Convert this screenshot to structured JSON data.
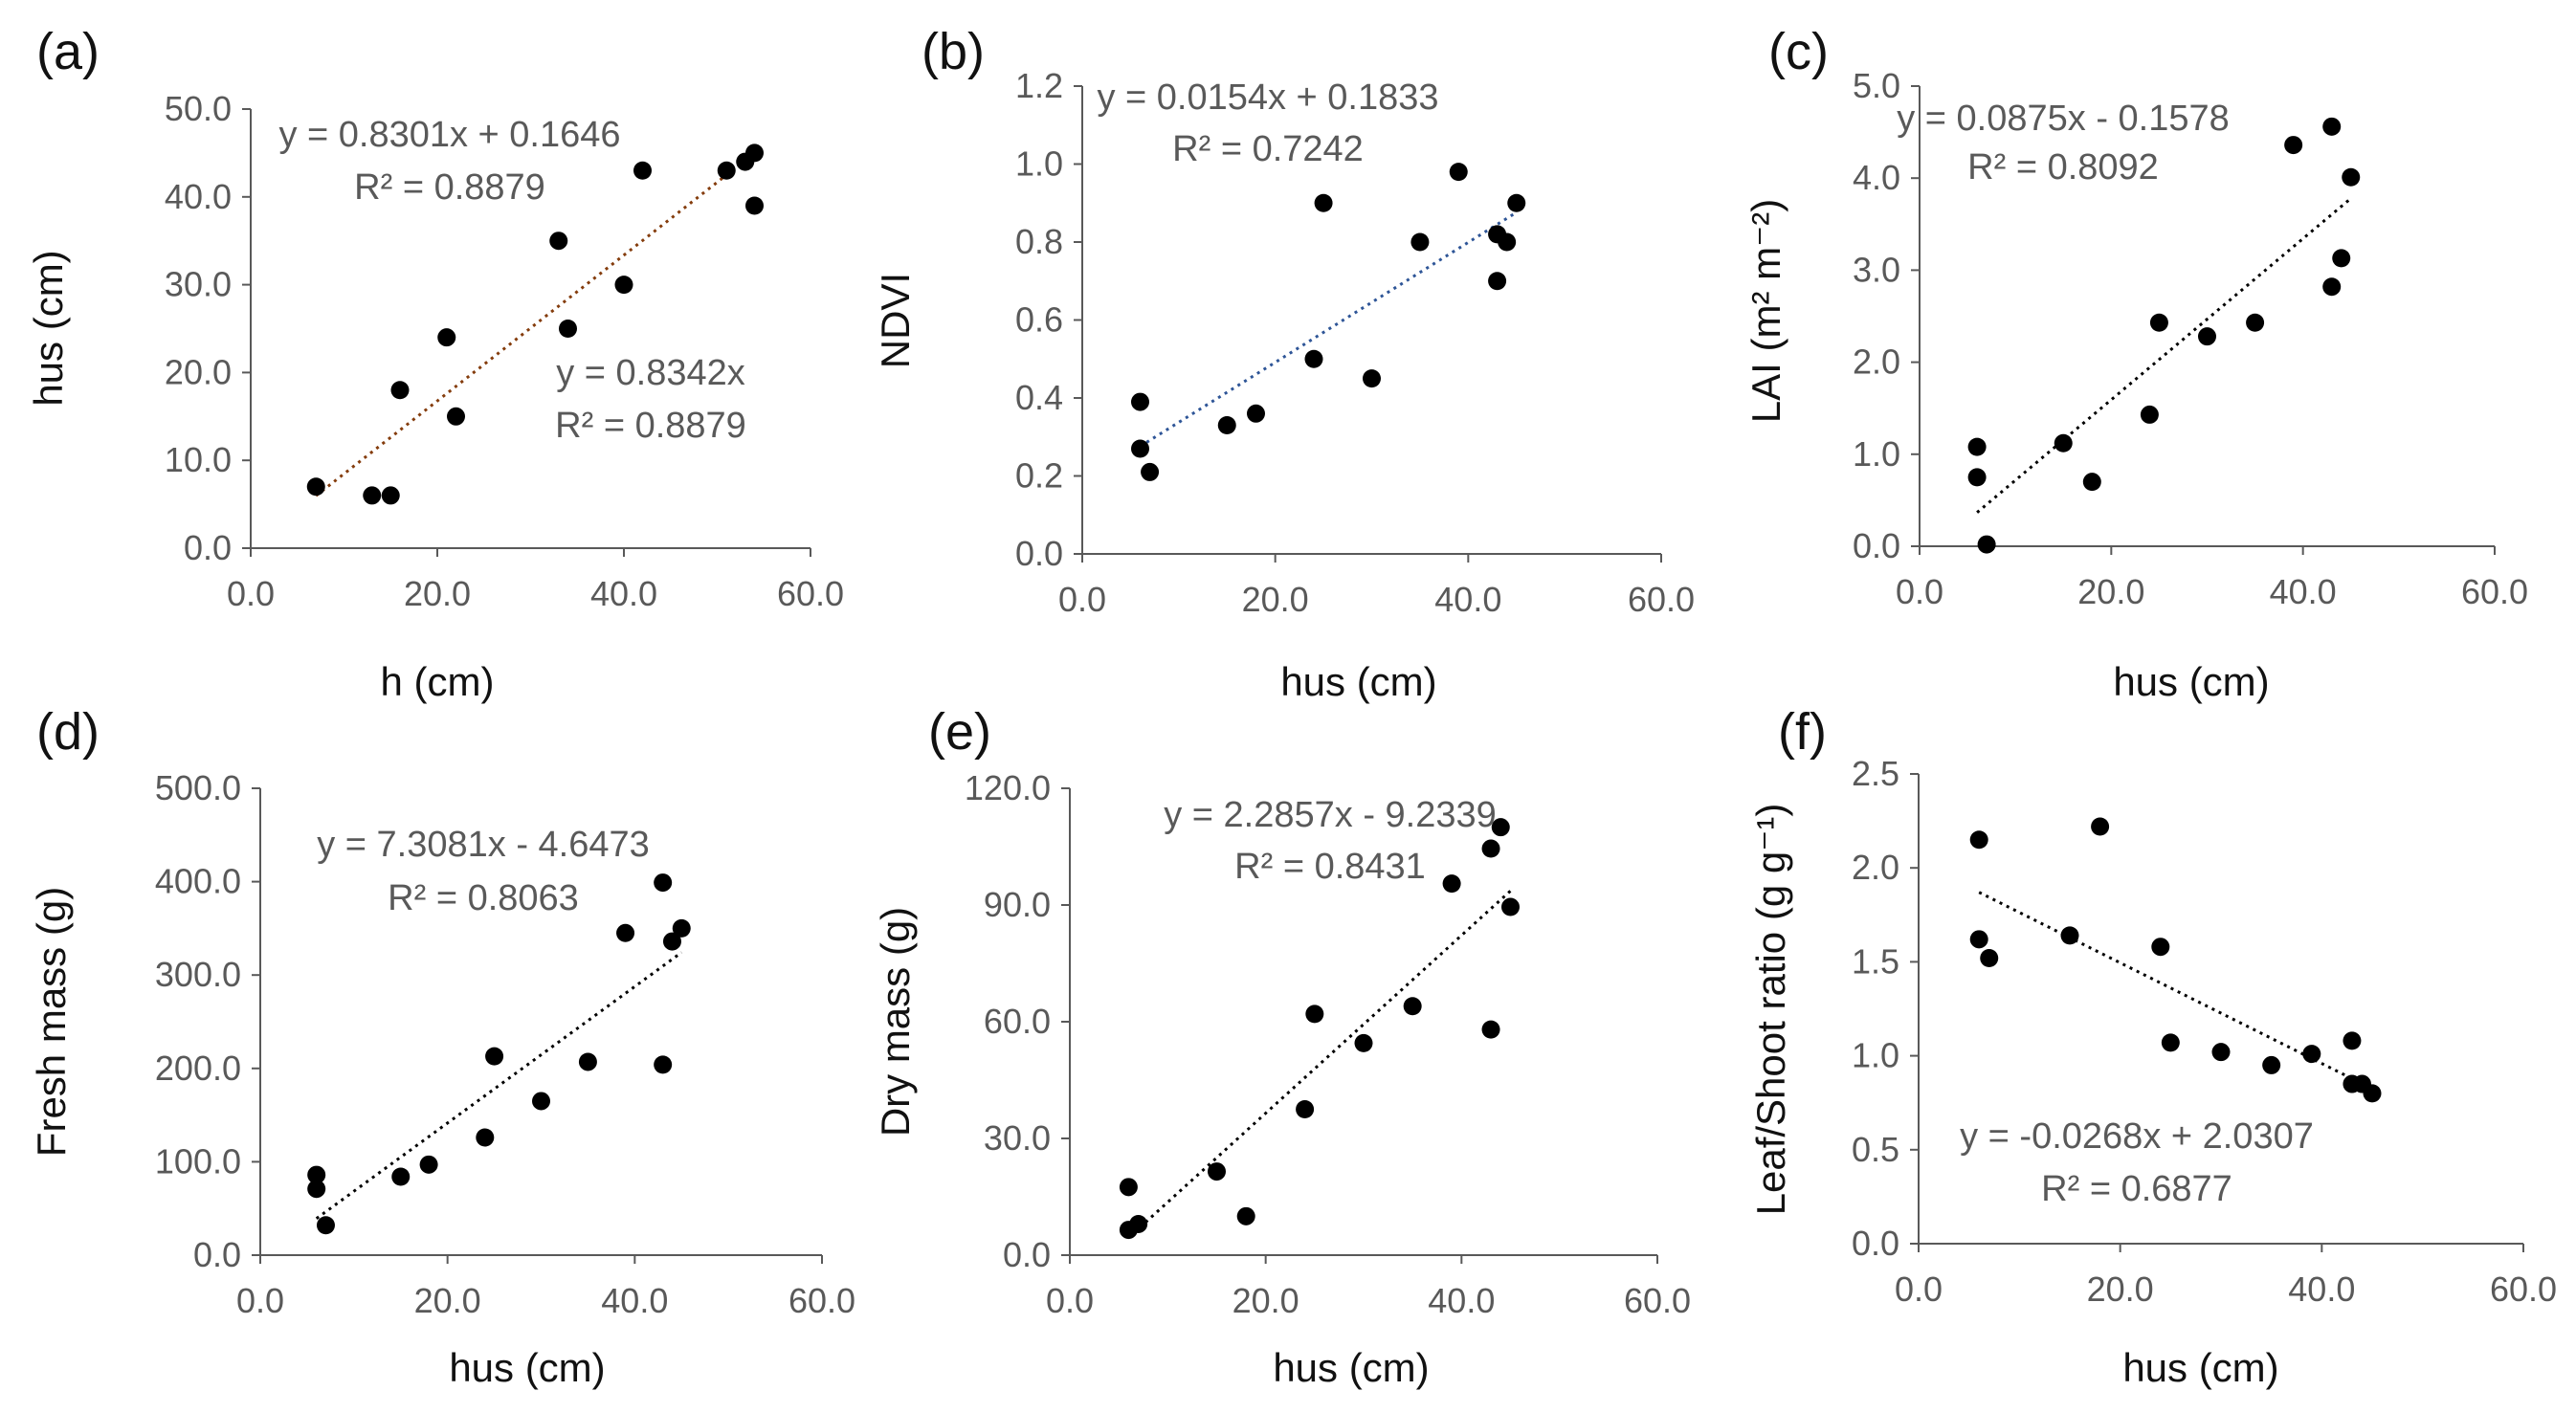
{
  "figure": {
    "background": "#ffffff",
    "point_color": "#000000",
    "axis_color": "#595959"
  },
  "chart_data": [
    {
      "type": "scatter",
      "panel_label": "(a)",
      "xlabel": "h  (cm)",
      "ylabel": "hus (cm)",
      "xlim": [
        0,
        60
      ],
      "ylim": [
        0,
        50
      ],
      "xticks": [
        0,
        20,
        40,
        60
      ],
      "xtick_labels": [
        "0.0",
        "20.0",
        "40.0",
        "60.0"
      ],
      "yticks": [
        0,
        10,
        20,
        30,
        40,
        50
      ],
      "ytick_labels": [
        "0.0",
        "10.0",
        "20.0",
        "30.0",
        "40.0",
        "50.0"
      ],
      "points": [
        [
          7,
          7
        ],
        [
          13,
          6
        ],
        [
          15,
          6
        ],
        [
          16,
          18
        ],
        [
          21,
          24
        ],
        [
          22,
          15
        ],
        [
          33,
          35
        ],
        [
          34,
          25
        ],
        [
          40,
          30
        ],
        [
          42,
          43
        ],
        [
          51,
          43
        ],
        [
          53,
          44
        ],
        [
          54,
          45
        ],
        [
          54,
          39
        ]
      ],
      "trendline": {
        "x": [
          7,
          54
        ],
        "y": [
          5.975,
          44.989
        ],
        "color": "#843c0c"
      },
      "annotations": [
        "y = 0.8301x + 0.1646",
        "R² = 0.8879",
        "y = 0.8342x",
        "R² = 0.8879"
      ]
    },
    {
      "type": "scatter",
      "panel_label": "(b)",
      "xlabel": "hus (cm)",
      "ylabel": "NDVI",
      "xlim": [
        0,
        60
      ],
      "ylim": [
        0,
        1.2
      ],
      "xticks": [
        0,
        20,
        40,
        60
      ],
      "xtick_labels": [
        "0.0",
        "20.0",
        "40.0",
        "60.0"
      ],
      "yticks": [
        0,
        0.2,
        0.4,
        0.6,
        0.8,
        1.0,
        1.2
      ],
      "ytick_labels": [
        "0.0",
        "0.2",
        "0.4",
        "0.6",
        "0.8",
        "1.0",
        "1.2"
      ],
      "points": [
        [
          6,
          0.39
        ],
        [
          6,
          0.27
        ],
        [
          7,
          0.21
        ],
        [
          15,
          0.33
        ],
        [
          18,
          0.36
        ],
        [
          24,
          0.5
        ],
        [
          25,
          0.9
        ],
        [
          30,
          0.45
        ],
        [
          35,
          0.8
        ],
        [
          39,
          0.98
        ],
        [
          43,
          0.82
        ],
        [
          43,
          0.7
        ],
        [
          44,
          0.8
        ],
        [
          45,
          0.9
        ]
      ],
      "trendline": {
        "x": [
          6,
          45
        ],
        "y": [
          0.276,
          0.876
        ],
        "color": "#2e5597"
      },
      "annotations": [
        "y = 0.0154x + 0.1833",
        "R² = 0.7242"
      ]
    },
    {
      "type": "scatter",
      "panel_label": "(c)",
      "xlabel": "hus (cm)",
      "ylabel": "LAI  (m² m⁻²)",
      "xlim": [
        0,
        60
      ],
      "ylim": [
        0,
        5
      ],
      "xticks": [
        0,
        20,
        40,
        60
      ],
      "xtick_labels": [
        "0.0",
        "20.0",
        "40.0",
        "60.0"
      ],
      "yticks": [
        0,
        1,
        2,
        3,
        4,
        5
      ],
      "ytick_labels": [
        "0.0",
        "1.0",
        "2.0",
        "3.0",
        "4.0",
        "5.0"
      ],
      "points": [
        [
          6,
          1.08
        ],
        [
          6,
          0.75
        ],
        [
          7,
          0.02
        ],
        [
          15,
          1.12
        ],
        [
          18,
          0.7
        ],
        [
          24,
          1.43
        ],
        [
          25,
          2.43
        ],
        [
          30,
          2.28
        ],
        [
          35,
          2.43
        ],
        [
          39,
          4.36
        ],
        [
          43,
          4.56
        ],
        [
          43,
          2.82
        ],
        [
          44,
          3.13
        ],
        [
          45,
          4.01
        ]
      ],
      "trendline": {
        "x": [
          6,
          45
        ],
        "y": [
          0.367,
          3.78
        ],
        "color": "#000000"
      },
      "annotations": [
        "y = 0.0875x - 0.1578",
        "R² = 0.8092"
      ]
    },
    {
      "type": "scatter",
      "panel_label": "(d)",
      "xlabel": "hus (cm)",
      "ylabel": "Fresh mass (g)",
      "xlim": [
        0,
        60
      ],
      "ylim": [
        0,
        500
      ],
      "xticks": [
        0,
        20,
        40,
        60
      ],
      "xtick_labels": [
        "0.0",
        "20.0",
        "40.0",
        "60.0"
      ],
      "yticks": [
        0,
        100,
        200,
        300,
        400,
        500
      ],
      "ytick_labels": [
        "0.0",
        "100.0",
        "200.0",
        "300.0",
        "400.0",
        "500.0"
      ],
      "points": [
        [
          6,
          86
        ],
        [
          6,
          71
        ],
        [
          7,
          32
        ],
        [
          15,
          84
        ],
        [
          18,
          97
        ],
        [
          24,
          126
        ],
        [
          25,
          213
        ],
        [
          30,
          165
        ],
        [
          35,
          207
        ],
        [
          39,
          345
        ],
        [
          43,
          399
        ],
        [
          43,
          204
        ],
        [
          44,
          336
        ],
        [
          45,
          350
        ]
      ],
      "trendline": {
        "x": [
          6,
          45
        ],
        "y": [
          39.2,
          324.2
        ],
        "color": "#000000"
      },
      "annotations": [
        "y = 7.3081x - 4.6473",
        "R² = 0.8063"
      ]
    },
    {
      "type": "scatter",
      "panel_label": "(e)",
      "xlabel": "hus (cm)",
      "ylabel": "Dry mass (g)",
      "xlim": [
        0,
        60
      ],
      "ylim": [
        0,
        120
      ],
      "xticks": [
        0,
        20,
        40,
        60
      ],
      "xtick_labels": [
        "0.0",
        "20.0",
        "40.0",
        "60.0"
      ],
      "yticks": [
        0,
        30,
        60,
        90,
        120
      ],
      "ytick_labels": [
        "0.0",
        "30.0",
        "60.0",
        "90.0",
        "120.0"
      ],
      "points": [
        [
          6,
          17.5
        ],
        [
          6,
          6.5
        ],
        [
          7,
          8
        ],
        [
          15,
          21.5
        ],
        [
          18,
          10
        ],
        [
          24,
          37.5
        ],
        [
          25,
          62
        ],
        [
          30,
          54.5
        ],
        [
          35,
          64
        ],
        [
          39,
          95.5
        ],
        [
          43,
          104.5
        ],
        [
          43,
          58
        ],
        [
          44,
          110
        ],
        [
          45,
          89.5
        ]
      ],
      "trendline": {
        "x": [
          6,
          45
        ],
        "y": [
          4.48,
          93.62
        ],
        "color": "#000000"
      },
      "annotations": [
        "y = 2.2857x - 9.2339",
        "R² = 0.8431"
      ]
    },
    {
      "type": "scatter",
      "panel_label": "(f)",
      "xlabel": "hus (cm)",
      "ylabel": "Leaf/Shoot ratio (g g⁻¹)",
      "xlim": [
        0,
        60
      ],
      "ylim": [
        0,
        2.5
      ],
      "xticks": [
        0,
        20,
        40,
        60
      ],
      "xtick_labels": [
        "0.0",
        "20.0",
        "40.0",
        "60.0"
      ],
      "yticks": [
        0,
        0.5,
        1.0,
        1.5,
        2.0,
        2.5
      ],
      "ytick_labels": [
        "0.0",
        "0.5",
        "1.0",
        "1.5",
        "2.0",
        "2.5"
      ],
      "points": [
        [
          6,
          2.15
        ],
        [
          6,
          1.62
        ],
        [
          7,
          1.52
        ],
        [
          15,
          1.64
        ],
        [
          18,
          2.22
        ],
        [
          24,
          1.58
        ],
        [
          25,
          1.07
        ],
        [
          30,
          1.02
        ],
        [
          35,
          0.95
        ],
        [
          39,
          1.01
        ],
        [
          43,
          1.08
        ],
        [
          43,
          0.85
        ],
        [
          44,
          0.85
        ],
        [
          45,
          0.8
        ]
      ],
      "trendline": {
        "x": [
          6,
          45
        ],
        "y": [
          1.87,
          0.825
        ],
        "color": "#000000"
      },
      "annotations": [
        "y = -0.0268x + 2.0307",
        "R² = 0.6877"
      ]
    }
  ]
}
